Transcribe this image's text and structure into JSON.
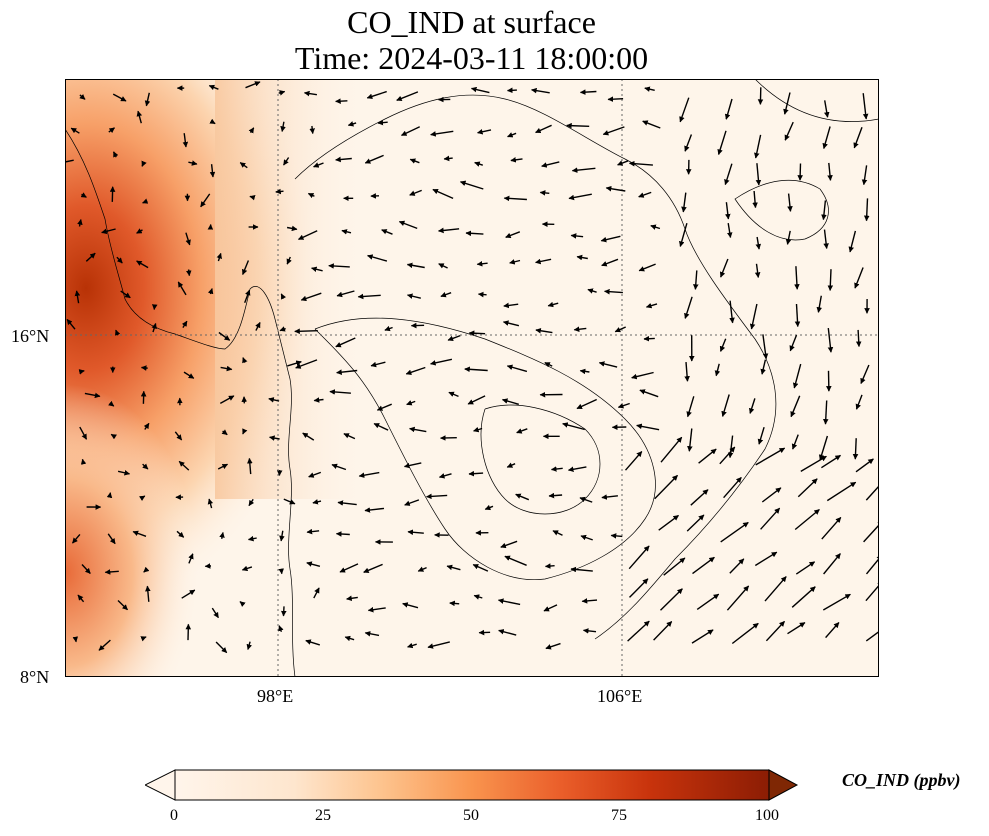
{
  "title": {
    "line1": "CO_IND at surface",
    "line2": "Time: 2024-03-11 18:00:00"
  },
  "map": {
    "lon_labels": [
      "98°E",
      "106°E"
    ],
    "lat_labels": [
      "16°N",
      "8°N"
    ],
    "lon_range": [
      93,
      112
    ],
    "lat_range": [
      8,
      22
    ]
  },
  "colorbar": {
    "label": "CO_IND (ppbv)",
    "ticks": [
      "0",
      "25",
      "50",
      "75",
      "100"
    ],
    "range": [
      0,
      100
    ],
    "extend": "max",
    "colors": [
      "#fff5eb",
      "#fdd3a7",
      "#fdb97d",
      "#f16913",
      "#d94801",
      "#a63603",
      "#7f2704"
    ]
  },
  "legend": {
    "field": "CO_IND",
    "vectors": "wind"
  }
}
